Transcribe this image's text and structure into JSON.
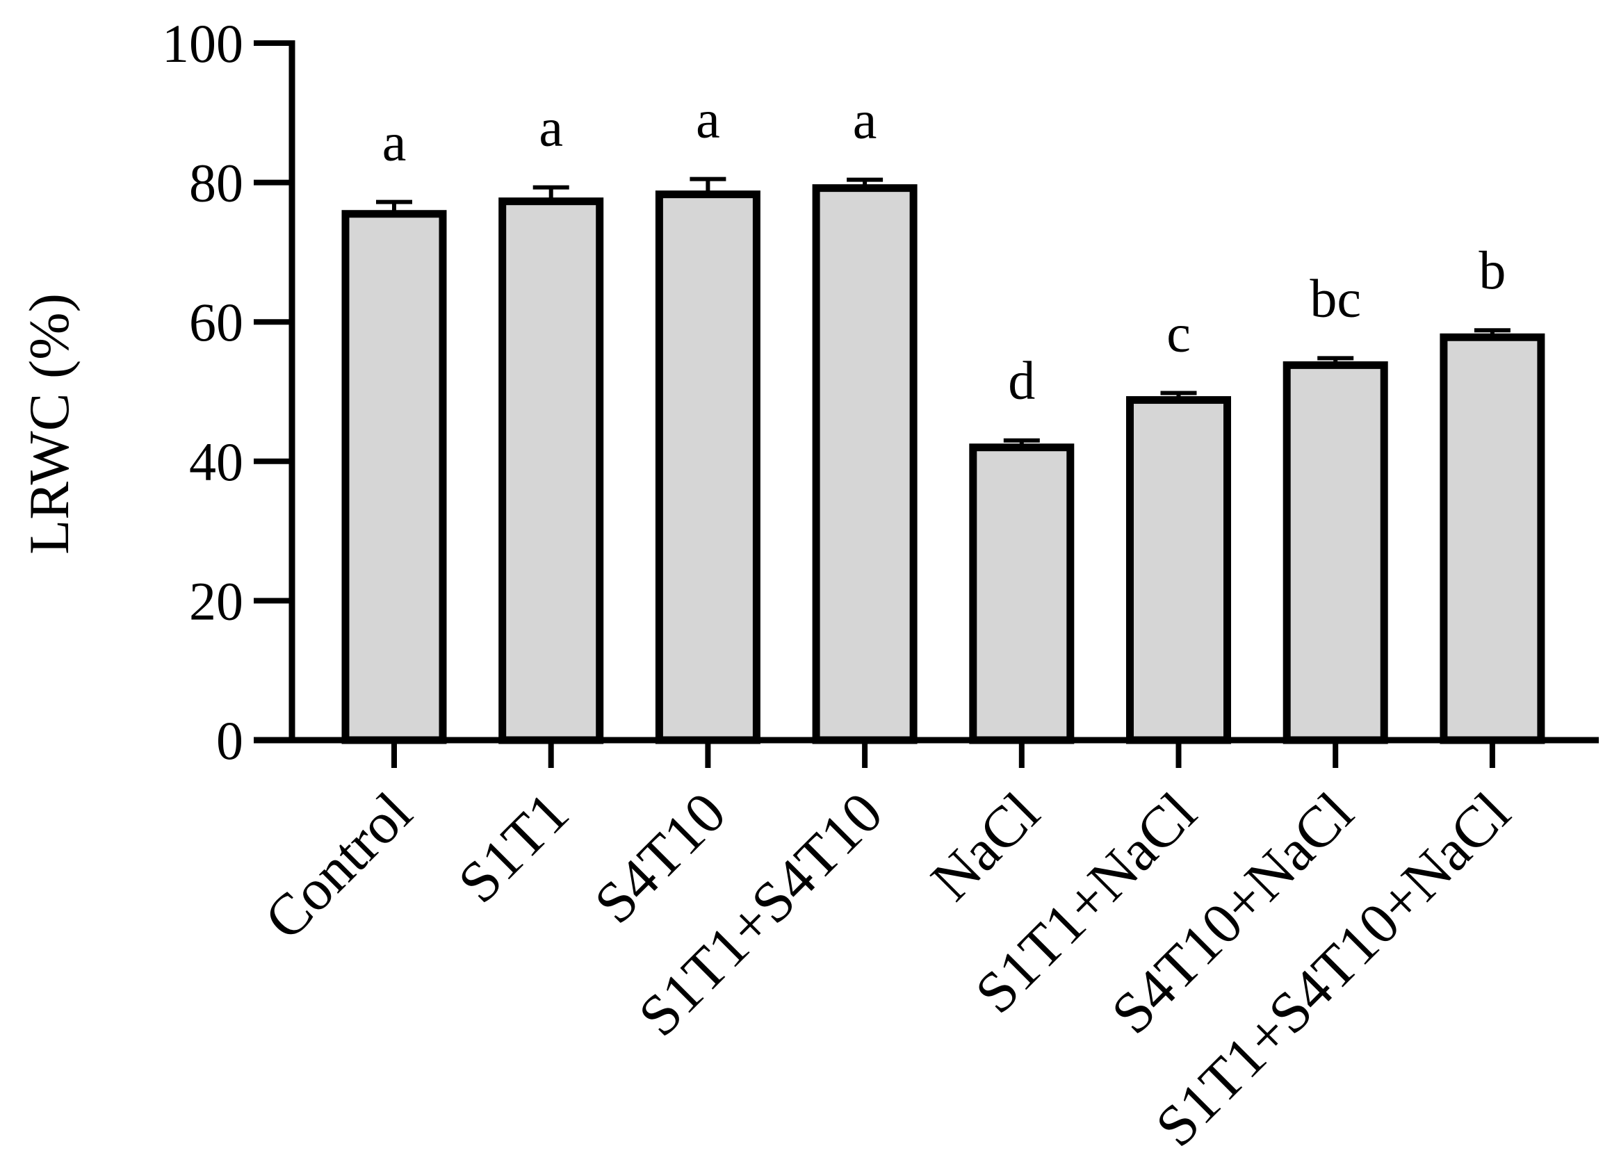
{
  "chart_data": {
    "type": "bar",
    "ylabel": "LRWC (%)",
    "ylim": [
      0,
      100
    ],
    "yticks": [
      0,
      20,
      40,
      60,
      80,
      100
    ],
    "categories": [
      "Control",
      "S1T1",
      "S4T10",
      "S1T1+S4T10",
      "NaCl",
      "S1T1+NaCl",
      "S4T10+NaCl",
      "S1T1+S4T10+NaCl"
    ],
    "values": [
      75.5,
      77.3,
      78.3,
      79.2,
      42.0,
      48.8,
      53.8,
      57.8
    ],
    "errors": [
      1.7,
      2.0,
      2.2,
      1.2,
      1.0,
      1.0,
      1.0,
      1.0
    ],
    "significance_letters": [
      "a",
      "a",
      "a",
      "a",
      "d",
      "c",
      "bc",
      "b"
    ],
    "colors": {
      "bar_fill": "#d6d6d6",
      "bar_edge": "#000000"
    }
  }
}
